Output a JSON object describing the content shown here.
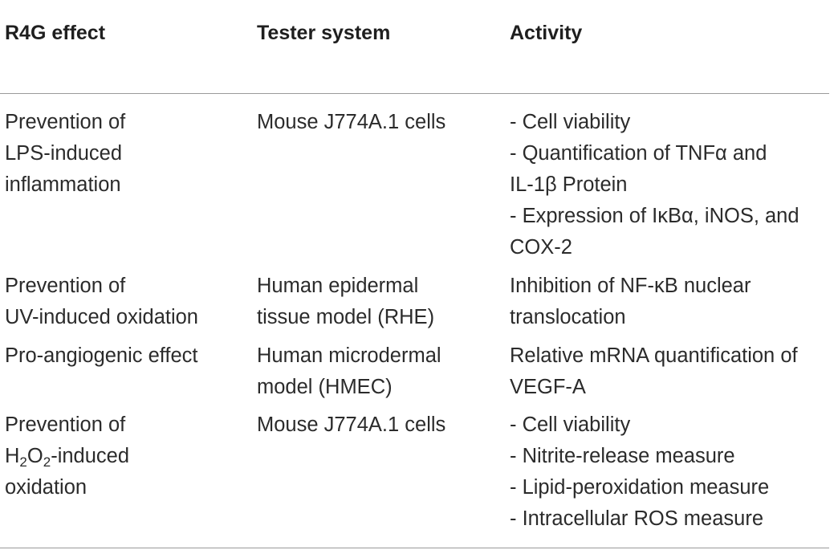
{
  "headers": {
    "effect": "R4G effect",
    "system": "Tester system",
    "activity": "Activity"
  },
  "rows": [
    {
      "effect": [
        "Prevention of",
        "LPS-induced",
        "inflammation"
      ],
      "system": [
        "Mouse J774A.1 cells"
      ],
      "activity": [
        "- Cell viability",
        "- Quantification of TNFα and",
        "IL-1β Protein",
        "- Expression of IκBα, iNOS, and",
        "COX-2"
      ]
    },
    {
      "effect": [
        "Prevention of",
        "UV-induced oxidation"
      ],
      "system": [
        "Human epidermal",
        "tissue model (RHE)"
      ],
      "activity": [
        "Inhibition of NF-κB nuclear",
        "translocation"
      ]
    },
    {
      "effect": [
        "Pro-angiogenic effect"
      ],
      "system": [
        "Human microdermal",
        "model (HMEC)"
      ],
      "activity": [
        "Relative mRNA quantification of",
        "VEGF-A"
      ]
    },
    {
      "effect": {
        "line1": "Prevention of",
        "line2": {
          "h": "H",
          "sub1": "2",
          "o": "O",
          "sub2": "2",
          "rest": "-induced"
        },
        "line3": "oxidation"
      },
      "system": [
        "Mouse J774A.1 cells"
      ],
      "activity": [
        "- Cell viability",
        "- Nitrite-release measure",
        "- Lipid-peroxidation measure",
        "- Intracellular ROS measure"
      ]
    }
  ]
}
